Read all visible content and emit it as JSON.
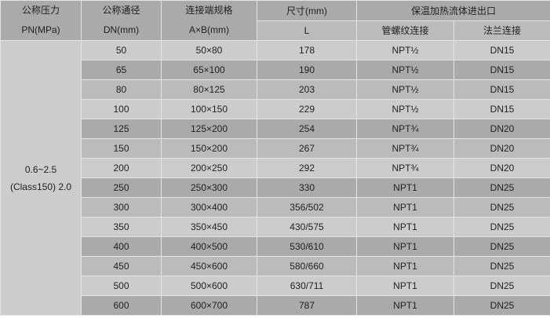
{
  "header": {
    "pressure": [
      "公称压力",
      "PN(MPa)"
    ],
    "diameter": [
      "公称通径",
      "DN(mm)"
    ],
    "connection": [
      "连接端规格",
      "A×B(mm)"
    ],
    "size": [
      "尺寸(mm)",
      "L"
    ],
    "inlet_outlet": "保温加热流体进出口",
    "thread": "管螺纹连接",
    "flange": "法兰连接"
  },
  "pressure_value": [
    "0.6~2.5",
    "(Class150) 2.0"
  ],
  "rows": [
    {
      "dn": "50",
      "ab": "50×80",
      "l": "178",
      "thread": "NPT½",
      "flange": "DN15"
    },
    {
      "dn": "65",
      "ab": "65×100",
      "l": "190",
      "thread": "NPT½",
      "flange": "DN15"
    },
    {
      "dn": "80",
      "ab": "80×125",
      "l": "203",
      "thread": "NPT½",
      "flange": "DN15"
    },
    {
      "dn": "100",
      "ab": "100×150",
      "l": "229",
      "thread": "NPT½",
      "flange": "DN15"
    },
    {
      "dn": "125",
      "ab": "125×200",
      "l": "254",
      "thread": "NPT¾",
      "flange": "DN20"
    },
    {
      "dn": "150",
      "ab": "150×200",
      "l": "267",
      "thread": "NPT¾",
      "flange": "DN20"
    },
    {
      "dn": "200",
      "ab": "200×250",
      "l": "292",
      "thread": "NPT¾",
      "flange": "DN20"
    },
    {
      "dn": "250",
      "ab": "250×300",
      "l": "330",
      "thread": "NPT1",
      "flange": "DN25"
    },
    {
      "dn": "300",
      "ab": "300×400",
      "l": "356/502",
      "thread": "NPT1",
      "flange": "DN25"
    },
    {
      "dn": "350",
      "ab": "350×450",
      "l": "430/575",
      "thread": "NPT1",
      "flange": "DN25"
    },
    {
      "dn": "400",
      "ab": "400×500",
      "l": "530/610",
      "thread": "NPT1",
      "flange": "DN25"
    },
    {
      "dn": "450",
      "ab": "450×600",
      "l": "580/660",
      "thread": "NPT1",
      "flange": "DN25"
    },
    {
      "dn": "500",
      "ab": "500×600",
      "l": "630/711",
      "thread": "NPT1",
      "flange": "DN25"
    },
    {
      "dn": "600",
      "ab": "600×700",
      "l": "787",
      "thread": "NPT1",
      "flange": "DN25"
    }
  ]
}
